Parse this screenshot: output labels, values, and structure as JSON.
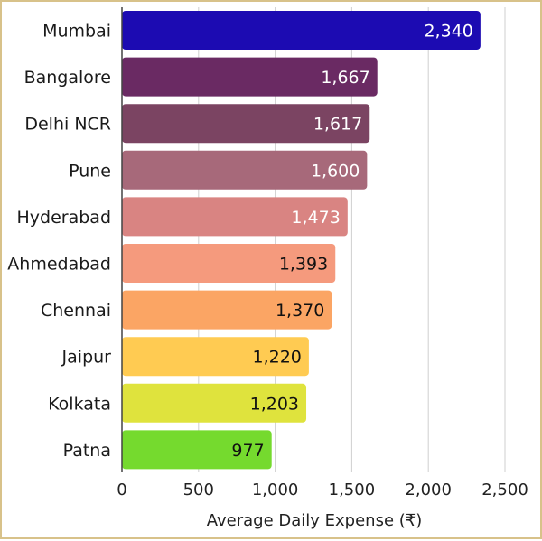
{
  "chart_data": {
    "type": "bar",
    "orientation": "horizontal",
    "categories": [
      "Mumbai",
      "Bangalore",
      "Delhi NCR",
      "Pune",
      "Hyderabad",
      "Ahmedabad",
      "Chennai",
      "Jaipur",
      "Kolkata",
      "Patna"
    ],
    "values": [
      2340,
      1667,
      1617,
      1600,
      1473,
      1393,
      1370,
      1220,
      1203,
      977
    ],
    "value_labels": [
      "2,340",
      "1,667",
      "1,617",
      "1,600",
      "1,473",
      "1,393",
      "1,370",
      "1,220",
      "1,203",
      "977"
    ],
    "bar_colors": [
      "#1c0bb2",
      "#6a2a63",
      "#7b4462",
      "#a7697a",
      "#d98482",
      "#f59a7d",
      "#fba564",
      "#ffcb52",
      "#dfe33d",
      "#75da2e"
    ],
    "label_colors": [
      "#ffffff",
      "#ffffff",
      "#ffffff",
      "#ffffff",
      "#ffffff",
      "#111111",
      "#111111",
      "#111111",
      "#111111",
      "#111111"
    ],
    "xlabel": "Average Daily Expense (₹)",
    "ylabel": "",
    "title": "",
    "xlim": [
      0,
      2600
    ],
    "x_ticks": [
      0,
      500,
      1000,
      1500,
      2000,
      2500
    ],
    "x_tick_labels": [
      "0",
      "500",
      "1,000",
      "1,500",
      "2,000",
      "2,500"
    ],
    "grid": true,
    "legend": "none"
  }
}
